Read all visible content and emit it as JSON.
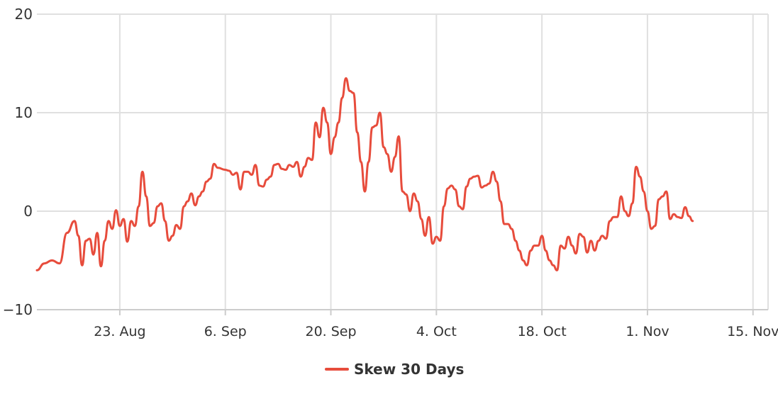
{
  "chart_data": {
    "type": "line",
    "title": "",
    "xlabel": "",
    "ylabel": "",
    "xlim": [
      "2021-08-12",
      "2021-11-17"
    ],
    "ylim": [
      -10,
      20
    ],
    "yticks": [
      -10,
      0,
      10,
      20
    ],
    "ytick_labels": [
      "−10",
      "0",
      "10",
      "20"
    ],
    "xticks": [
      {
        "date": "2021-08-23",
        "label": "23. Aug"
      },
      {
        "date": "2021-09-06",
        "label": "6. Sep"
      },
      {
        "date": "2021-09-20",
        "label": "20. Sep"
      },
      {
        "date": "2021-10-04",
        "label": "4. Oct"
      },
      {
        "date": "2021-10-18",
        "label": "18. Oct"
      },
      {
        "date": "2021-11-01",
        "label": "1. Nov"
      },
      {
        "date": "2021-11-15",
        "label": "15. Nov"
      }
    ],
    "grid": true,
    "legend_position": "bottom-center",
    "series": [
      {
        "name": "Skew 30 Days",
        "color": "#e74c3c",
        "points": [
          [
            "2021-08-12",
            -6.0
          ],
          [
            "2021-08-13",
            -5.3
          ],
          [
            "2021-08-14",
            -5.0
          ],
          [
            "2021-08-15",
            -5.3
          ],
          [
            "2021-08-16",
            -2.2
          ],
          [
            "2021-08-17",
            -1.0
          ],
          [
            "2021-08-17T12",
            -2.5
          ],
          [
            "2021-08-18",
            -5.5
          ],
          [
            "2021-08-18T12",
            -3.0
          ],
          [
            "2021-08-19",
            -2.8
          ],
          [
            "2021-08-19T12",
            -4.4
          ],
          [
            "2021-08-20",
            -2.2
          ],
          [
            "2021-08-20T12",
            -5.6
          ],
          [
            "2021-08-21",
            -3.0
          ],
          [
            "2021-08-21T12",
            -1.0
          ],
          [
            "2021-08-22",
            -1.8
          ],
          [
            "2021-08-22T12",
            0.1
          ],
          [
            "2021-08-23",
            -1.5
          ],
          [
            "2021-08-23T12",
            -0.8
          ],
          [
            "2021-08-24",
            -3.1
          ],
          [
            "2021-08-24T12",
            -1.0
          ],
          [
            "2021-08-25",
            -1.5
          ],
          [
            "2021-08-25T12",
            0.5
          ],
          [
            "2021-08-26",
            4.0
          ],
          [
            "2021-08-26T12",
            1.5
          ],
          [
            "2021-08-27",
            -1.5
          ],
          [
            "2021-08-27T12",
            -1.2
          ],
          [
            "2021-08-28",
            0.5
          ],
          [
            "2021-08-28T12",
            0.8
          ],
          [
            "2021-08-29",
            -1.0
          ],
          [
            "2021-08-29T12",
            -3.0
          ],
          [
            "2021-08-30",
            -2.5
          ],
          [
            "2021-08-30T12",
            -1.4
          ],
          [
            "2021-08-31",
            -1.8
          ],
          [
            "2021-08-31T12",
            0.5
          ],
          [
            "2021-09-01",
            1.0
          ],
          [
            "2021-09-01T12",
            1.8
          ],
          [
            "2021-09-02",
            0.6
          ],
          [
            "2021-09-02T12",
            1.5
          ],
          [
            "2021-09-03",
            2.0
          ],
          [
            "2021-09-03T12",
            3.0
          ],
          [
            "2021-09-04",
            3.3
          ],
          [
            "2021-09-04T12",
            4.8
          ],
          [
            "2021-09-05",
            4.4
          ],
          [
            "2021-09-06",
            4.2
          ],
          [
            "2021-09-06T12",
            4.1
          ],
          [
            "2021-09-07",
            3.7
          ],
          [
            "2021-09-07T12",
            3.9
          ],
          [
            "2021-09-08",
            2.2
          ],
          [
            "2021-09-08T12",
            4.0
          ],
          [
            "2021-09-09",
            4.0
          ],
          [
            "2021-09-09T12",
            3.7
          ],
          [
            "2021-09-10",
            4.7
          ],
          [
            "2021-09-10T12",
            2.6
          ],
          [
            "2021-09-11",
            2.5
          ],
          [
            "2021-09-11T12",
            3.2
          ],
          [
            "2021-09-12",
            3.5
          ],
          [
            "2021-09-12T12",
            4.7
          ],
          [
            "2021-09-13",
            4.8
          ],
          [
            "2021-09-13T12",
            4.3
          ],
          [
            "2021-09-14",
            4.2
          ],
          [
            "2021-09-14T12",
            4.7
          ],
          [
            "2021-09-15",
            4.5
          ],
          [
            "2021-09-15T12",
            5.0
          ],
          [
            "2021-09-16",
            3.5
          ],
          [
            "2021-09-16T12",
            4.5
          ],
          [
            "2021-09-17",
            5.4
          ],
          [
            "2021-09-17T12",
            5.2
          ],
          [
            "2021-09-18",
            9.0
          ],
          [
            "2021-09-18T12",
            7.5
          ],
          [
            "2021-09-19",
            10.5
          ],
          [
            "2021-09-19T12",
            9.0
          ],
          [
            "2021-09-20",
            5.8
          ],
          [
            "2021-09-20T12",
            7.5
          ],
          [
            "2021-09-21",
            9.0
          ],
          [
            "2021-09-21T12",
            11.5
          ],
          [
            "2021-09-22",
            13.5
          ],
          [
            "2021-09-22T12",
            12.2
          ],
          [
            "2021-09-23",
            12.0
          ],
          [
            "2021-09-23T12",
            8.0
          ],
          [
            "2021-09-24",
            5.0
          ],
          [
            "2021-09-24T12",
            2.0
          ],
          [
            "2021-09-25",
            5.0
          ],
          [
            "2021-09-25T12",
            8.5
          ],
          [
            "2021-09-26",
            8.7
          ],
          [
            "2021-09-26T12",
            10.0
          ],
          [
            "2021-09-27",
            6.5
          ],
          [
            "2021-09-27T12",
            5.8
          ],
          [
            "2021-09-28",
            4.0
          ],
          [
            "2021-09-28T12",
            5.5
          ],
          [
            "2021-09-29",
            7.6
          ],
          [
            "2021-09-29T12",
            2.0
          ],
          [
            "2021-09-30",
            1.7
          ],
          [
            "2021-09-30T12",
            0.0
          ],
          [
            "2021-10-01",
            1.8
          ],
          [
            "2021-10-01T12",
            1.0
          ],
          [
            "2021-10-02",
            -0.8
          ],
          [
            "2021-10-02T12",
            -2.5
          ],
          [
            "2021-10-03",
            -0.6
          ],
          [
            "2021-10-03T12",
            -3.3
          ],
          [
            "2021-10-04",
            -2.6
          ],
          [
            "2021-10-04T12",
            -3.0
          ],
          [
            "2021-10-05",
            0.5
          ],
          [
            "2021-10-05T12",
            2.3
          ],
          [
            "2021-10-06",
            2.6
          ],
          [
            "2021-10-06T12",
            2.2
          ],
          [
            "2021-10-07",
            0.5
          ],
          [
            "2021-10-07T12",
            0.2
          ],
          [
            "2021-10-08",
            2.5
          ],
          [
            "2021-10-08T12",
            3.3
          ],
          [
            "2021-10-09",
            3.5
          ],
          [
            "2021-10-09T12",
            3.6
          ],
          [
            "2021-10-10",
            2.4
          ],
          [
            "2021-10-10T12",
            2.6
          ],
          [
            "2021-10-11",
            2.8
          ],
          [
            "2021-10-11T12",
            4.0
          ],
          [
            "2021-10-12",
            3.0
          ],
          [
            "2021-10-12T12",
            1.0
          ],
          [
            "2021-10-13",
            -1.3
          ],
          [
            "2021-10-13T12",
            -1.3
          ],
          [
            "2021-10-14",
            -1.8
          ],
          [
            "2021-10-14T12",
            -3.0
          ],
          [
            "2021-10-15",
            -4.0
          ],
          [
            "2021-10-15T12",
            -5.0
          ],
          [
            "2021-10-16",
            -5.5
          ],
          [
            "2021-10-16T12",
            -4.0
          ],
          [
            "2021-10-17",
            -3.5
          ],
          [
            "2021-10-17T12",
            -3.5
          ],
          [
            "2021-10-18",
            -2.5
          ],
          [
            "2021-10-18T12",
            -4.0
          ],
          [
            "2021-10-19",
            -5.0
          ],
          [
            "2021-10-19T12",
            -5.5
          ],
          [
            "2021-10-20",
            -6.0
          ],
          [
            "2021-10-20T12",
            -3.5
          ],
          [
            "2021-10-21",
            -3.8
          ],
          [
            "2021-10-21T12",
            -2.6
          ],
          [
            "2021-10-22",
            -3.5
          ],
          [
            "2021-10-22T12",
            -4.3
          ],
          [
            "2021-10-23",
            -2.3
          ],
          [
            "2021-10-23T12",
            -2.6
          ],
          [
            "2021-10-24",
            -4.2
          ],
          [
            "2021-10-24T12",
            -3.0
          ],
          [
            "2021-10-25",
            -4.0
          ],
          [
            "2021-10-25T12",
            -3.0
          ],
          [
            "2021-10-26",
            -2.5
          ],
          [
            "2021-10-26T12",
            -2.8
          ],
          [
            "2021-10-27",
            -1.0
          ],
          [
            "2021-10-27T12",
            -0.6
          ],
          [
            "2021-10-28",
            -0.6
          ],
          [
            "2021-10-28T12",
            1.5
          ],
          [
            "2021-10-29",
            0.0
          ],
          [
            "2021-10-29T12",
            -0.5
          ],
          [
            "2021-10-30",
            0.8
          ],
          [
            "2021-10-30T12",
            4.5
          ],
          [
            "2021-10-31",
            3.5
          ],
          [
            "2021-10-31T12",
            2.0
          ],
          [
            "2021-11-01",
            0.0
          ],
          [
            "2021-11-01T12",
            -1.8
          ],
          [
            "2021-11-02",
            -1.5
          ],
          [
            "2021-11-02T12",
            1.2
          ],
          [
            "2021-11-03",
            1.5
          ],
          [
            "2021-11-03T12",
            2.0
          ],
          [
            "2021-11-04",
            -0.8
          ],
          [
            "2021-11-04T12",
            -0.3
          ],
          [
            "2021-11-05",
            -0.6
          ],
          [
            "2021-11-05T12",
            -0.7
          ],
          [
            "2021-11-06",
            0.4
          ],
          [
            "2021-11-06T12",
            -0.5
          ],
          [
            "2021-11-07",
            -1.0
          ]
        ]
      }
    ]
  }
}
